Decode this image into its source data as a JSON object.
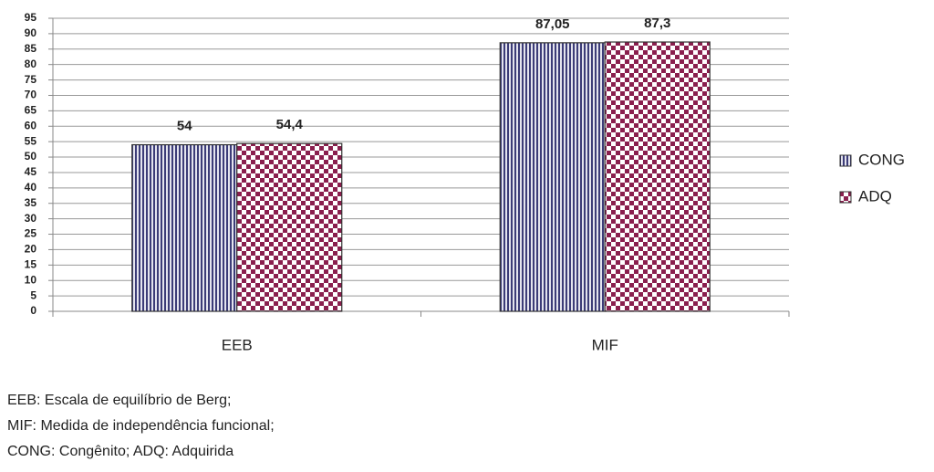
{
  "chart_data": {
    "type": "bar",
    "categories": [
      "EEB",
      "MIF"
    ],
    "series": [
      {
        "name": "CONG",
        "color": "#3c3c78",
        "values": [
          54,
          87.05
        ],
        "value_labels": [
          "54",
          "87,05"
        ]
      },
      {
        "name": "ADQ",
        "color": "#8a1f4e",
        "values": [
          54.4,
          87.3
        ],
        "value_labels": [
          "54,4",
          "87,3"
        ]
      }
    ],
    "ylim": [
      0,
      95
    ],
    "yticks": [
      0,
      5,
      10,
      15,
      20,
      25,
      30,
      35,
      40,
      45,
      50,
      55,
      60,
      65,
      70,
      75,
      80,
      85,
      90,
      95
    ],
    "grid": true,
    "legend": "right"
  },
  "notes": [
    "EEB: Escala de equilíbrio de Berg;",
    "MIF: Medida de independência funcional;",
    "CONG: Congênito; ADQ: Adquirida"
  ]
}
